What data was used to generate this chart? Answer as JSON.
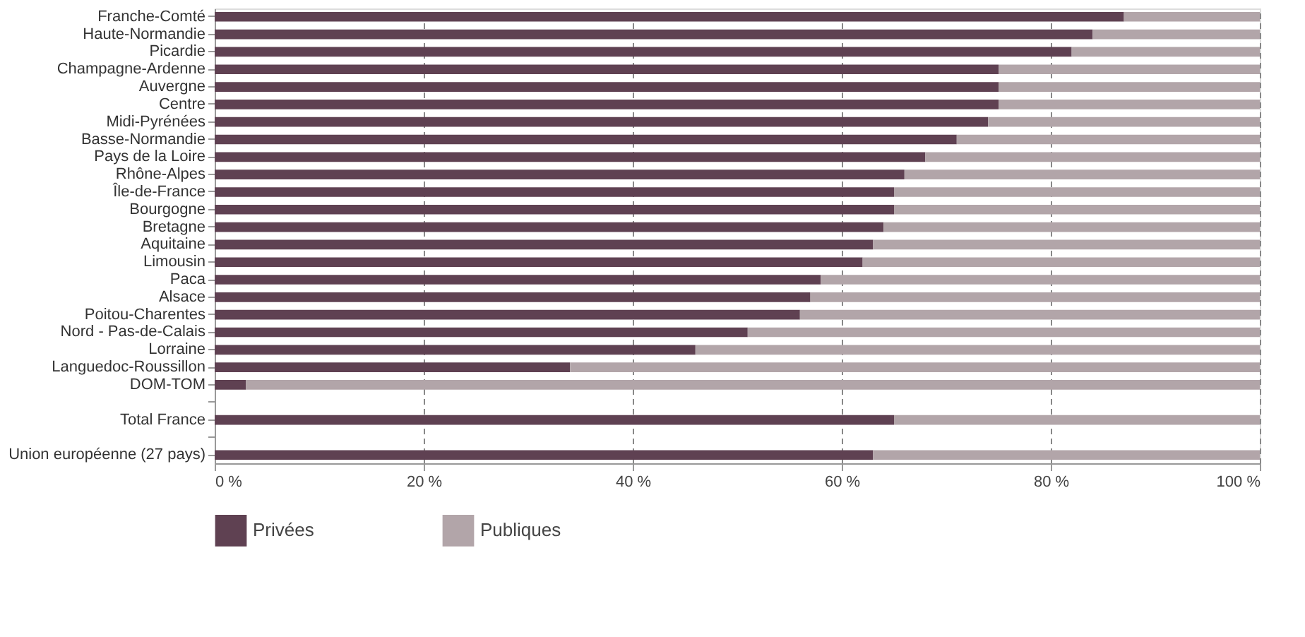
{
  "chart_data": {
    "type": "bar",
    "orientation": "horizontal",
    "stacked": true,
    "categories": [
      "Franche-Comté",
      "Haute-Normandie",
      "Picardie",
      "Champagne-Ardenne",
      "Auvergne",
      "Centre",
      "Midi-Pyrénées",
      "Basse-Normandie",
      "Pays de la Loire",
      "Rhône-Alpes",
      "Île-de-France",
      "Bourgogne",
      "Bretagne",
      "Aquitaine",
      "Limousin",
      "Paca",
      "Alsace",
      "Poitou-Charentes",
      "Nord - Pas-de-Calais",
      "Lorraine",
      "Languedoc-Roussillon",
      "DOM-TOM",
      null,
      "Total France",
      null,
      "Union européenne (27 pays)"
    ],
    "series": [
      {
        "name": "Privées",
        "color": "#5f4152",
        "values": [
          87,
          84,
          82,
          75,
          75,
          75,
          74,
          71,
          68,
          66,
          65,
          65,
          64,
          63,
          62,
          58,
          57,
          56,
          51,
          46,
          34,
          3,
          null,
          65,
          null,
          63
        ]
      },
      {
        "name": "Publiques",
        "color": "#b2a5a9",
        "values": [
          13,
          16,
          18,
          25,
          25,
          25,
          26,
          29,
          32,
          34,
          35,
          35,
          36,
          37,
          38,
          42,
          43,
          44,
          49,
          54,
          66,
          97,
          null,
          35,
          null,
          37
        ]
      }
    ],
    "xlim": [
      0,
      100
    ],
    "xticks": [
      {
        "value": 0,
        "label": "0 %"
      },
      {
        "value": 20,
        "label": "20 %"
      },
      {
        "value": 40,
        "label": "40 %"
      },
      {
        "value": 60,
        "label": "60 %"
      },
      {
        "value": 80,
        "label": "80 %"
      },
      {
        "value": 100,
        "label": "100 %"
      }
    ],
    "grid": "x",
    "legend": "bottom"
  }
}
